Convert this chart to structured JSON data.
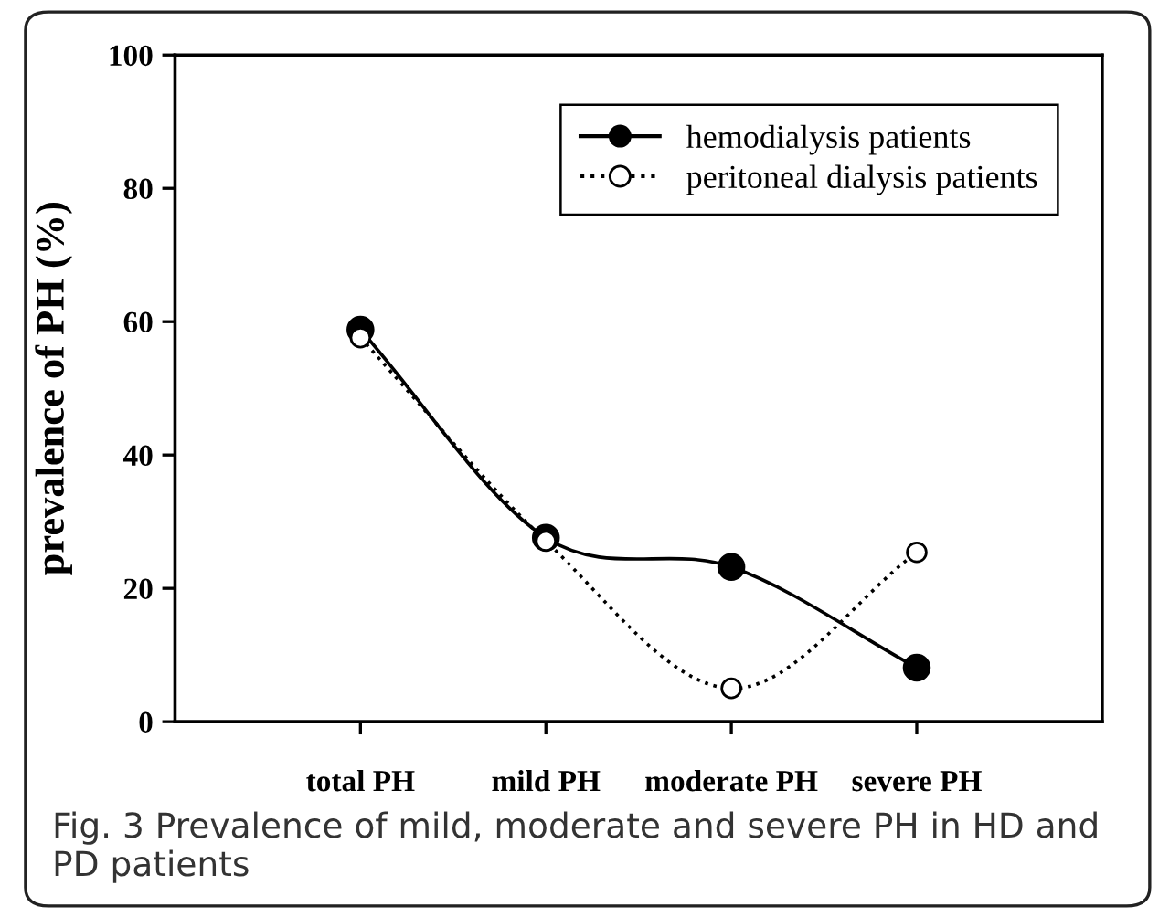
{
  "chart_data": {
    "type": "line",
    "ylabel": "prevalence of PH (%)",
    "categories": [
      "total PH",
      "mild PH",
      "moderate PH",
      "severe PH"
    ],
    "series": [
      {
        "name": "hemodialysis patients",
        "color": "#000000",
        "line_style": "solid",
        "marker": "circle",
        "values": [
          58.8,
          27.6,
          23.2,
          8.1
        ]
      },
      {
        "name": "peritoneal dialysis patients",
        "color": "#000000",
        "line_style": "dotted",
        "marker": "circle",
        "values": [
          57.6,
          27.1,
          5.0,
          25.4
        ]
      }
    ],
    "ylim": [
      0,
      100
    ],
    "yticks": [
      0,
      20,
      40,
      60,
      80,
      100
    ],
    "grid": false,
    "legend": "top right",
    "annotations": [
      "Fig. 3 Prevalence of mild, moderate and severe PH in HD and PD patients"
    ]
  }
}
